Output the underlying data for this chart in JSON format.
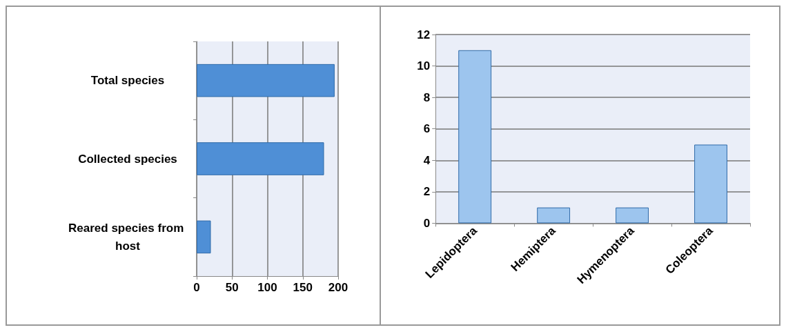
{
  "chart_data": [
    {
      "type": "bar",
      "orientation": "horizontal",
      "categories": [
        "Total species",
        "Collected species",
        "Reared species from host"
      ],
      "values": [
        195,
        180,
        20
      ],
      "color": "#4f8fd6",
      "xlim": [
        0,
        200
      ],
      "xticks": [
        0,
        50,
        100,
        150,
        200
      ],
      "grid": "x"
    },
    {
      "type": "bar",
      "categories": [
        "Lepidoptera",
        "Hemiptera",
        "Hymenoptera",
        "Coleoptera"
      ],
      "values": [
        11,
        1,
        1,
        5
      ],
      "color": "#9dc5ee",
      "ylim": [
        0,
        12
      ],
      "yticks": [
        0,
        2,
        4,
        6,
        8,
        10,
        12
      ],
      "grid": "y"
    }
  ]
}
